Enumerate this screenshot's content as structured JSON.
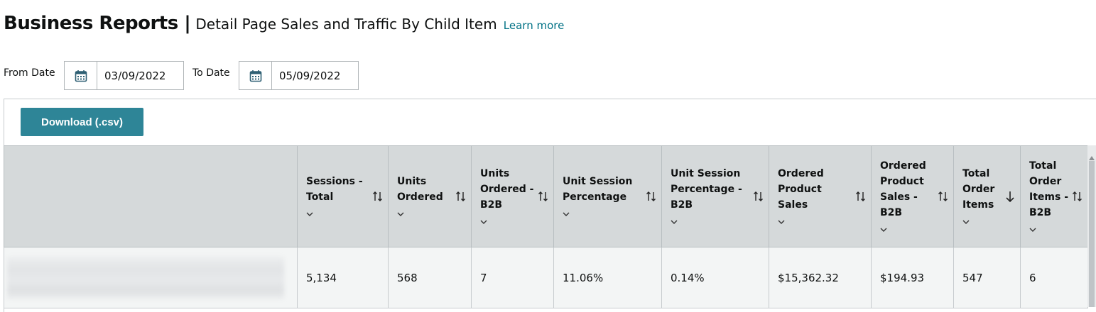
{
  "header": {
    "title": "Business Reports |",
    "subtitle": "Detail Page Sales and Traffic By Child Item",
    "learn_more": "Learn more"
  },
  "filters": {
    "from_label": "From Date",
    "from_value": "03/09/2022",
    "to_label": "To Date",
    "to_value": "05/09/2022",
    "icon": "calendar-icon"
  },
  "toolbar": {
    "download_label": "Download (.csv)",
    "accent_color": "#2e8597"
  },
  "table": {
    "columns": [
      {
        "label": ""
      },
      {
        "label": "Sessions - Total",
        "sort": "both"
      },
      {
        "label": "Units Ordered",
        "sort": "both"
      },
      {
        "label": "Units Ordered - B2B",
        "sort": "both"
      },
      {
        "label": "Unit Session Percentage",
        "sort": "both"
      },
      {
        "label": "Unit Session Percentage - B2B",
        "sort": "both"
      },
      {
        "label": "Ordered Product Sales",
        "sort": "both"
      },
      {
        "label": "Ordered Product Sales - B2B",
        "sort": "both"
      },
      {
        "label": "Total Order Items",
        "sort": "descending"
      },
      {
        "label": "Total Order Items - B2B",
        "sort": "both"
      }
    ],
    "rows": [
      {
        "cells": [
          "",
          "5,134",
          "568",
          "7",
          "11.06%",
          "0.14%",
          "$15,362.32",
          "$194.93",
          "547",
          "6"
        ]
      }
    ]
  }
}
